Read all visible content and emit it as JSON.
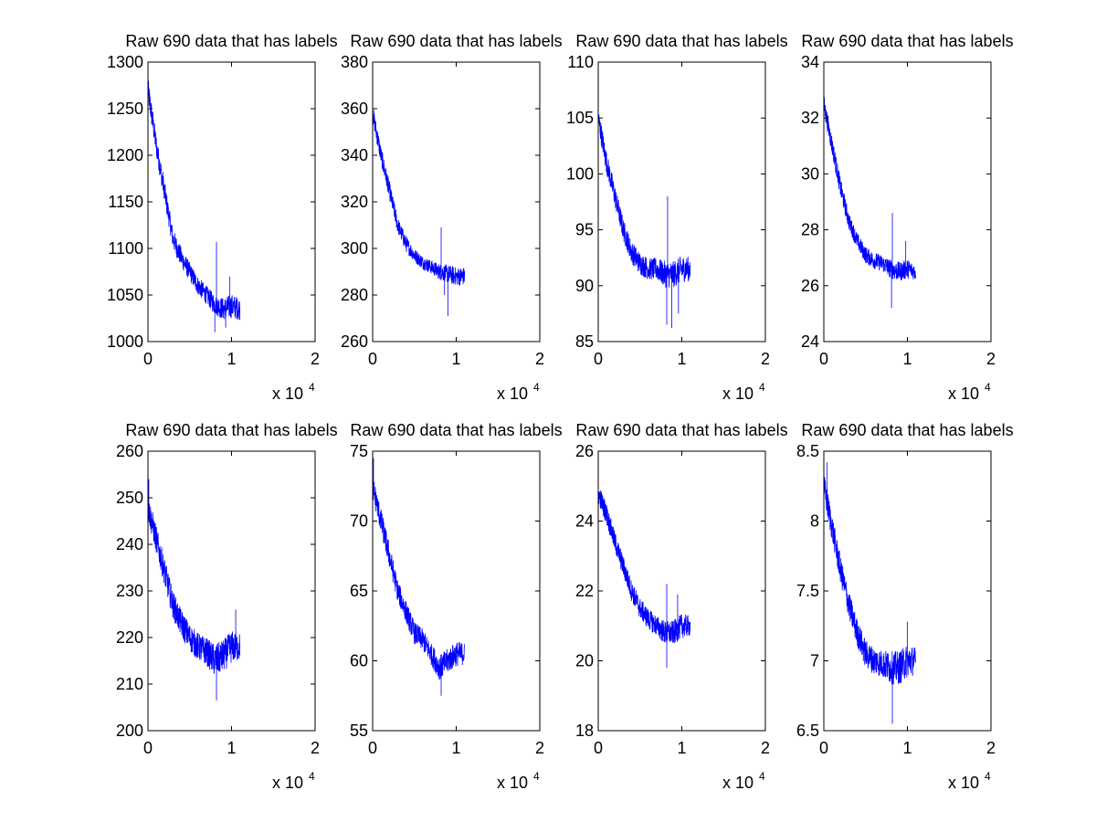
{
  "figure": {
    "background": "#ffffff",
    "axes_color": "#000000",
    "line_color": "#0000ff"
  },
  "chart_data": [
    {
      "type": "line",
      "title": "Raw 690 data that has labels",
      "xlim": [
        0,
        2
      ],
      "x_ticks": [
        "0",
        "1",
        "2"
      ],
      "x_multiplier_label": "x 10",
      "x_multiplier_exponent": "4",
      "ylim": [
        1000,
        1300
      ],
      "y_ticks": [
        "1000",
        "1050",
        "1100",
        "1150",
        "1200",
        "1250",
        "1300"
      ],
      "series": [
        {
          "color": "#0000ff",
          "x": [
            0,
            0.1,
            0.2,
            0.3,
            0.4,
            0.5,
            0.6,
            0.7,
            0.8,
            0.9,
            1.0,
            1.1
          ],
          "y": [
            1270,
            1210,
            1160,
            1110,
            1090,
            1075,
            1060,
            1050,
            1040,
            1035,
            1038,
            1035
          ],
          "band": [
            14,
            12,
            12,
            11,
            11,
            10,
            10,
            10,
            11,
            12,
            13,
            12
          ],
          "spikes": [
            [
              0.82,
              1107
            ],
            [
              0.8,
              1010
            ],
            [
              0.98,
              1070
            ],
            [
              0.93,
              1015
            ]
          ]
        }
      ]
    },
    {
      "type": "line",
      "title": "Raw 690 data that has labels",
      "xlim": [
        0,
        2
      ],
      "x_ticks": [
        "0",
        "1",
        "2"
      ],
      "x_multiplier_label": "x 10",
      "x_multiplier_exponent": "4",
      "ylim": [
        260,
        380
      ],
      "y_ticks": [
        "260",
        "280",
        "300",
        "320",
        "340",
        "360",
        "380"
      ],
      "series": [
        {
          "color": "#0000ff",
          "x": [
            0,
            0.1,
            0.2,
            0.3,
            0.4,
            0.5,
            0.6,
            0.7,
            0.8,
            0.9,
            1.0,
            1.1
          ],
          "y": [
            358,
            340,
            325,
            310,
            302,
            297,
            294,
            292,
            290,
            289,
            288,
            288
          ],
          "band": [
            4,
            4,
            4,
            3.5,
            3.5,
            3,
            3,
            3,
            3.5,
            4,
            4,
            4
          ],
          "spikes": [
            [
              0.82,
              309
            ],
            [
              0.9,
              271
            ],
            [
              0.86,
              280
            ]
          ]
        }
      ]
    },
    {
      "type": "line",
      "title": "Raw 690 data that has labels",
      "xlim": [
        0,
        2
      ],
      "x_ticks": [
        "0",
        "1",
        "2"
      ],
      "x_multiplier_label": "x 10",
      "x_multiplier_exponent": "4",
      "ylim": [
        85,
        110
      ],
      "y_ticks": [
        "85",
        "90",
        "95",
        "100",
        "105",
        "110"
      ],
      "series": [
        {
          "color": "#0000ff",
          "x": [
            0,
            0.1,
            0.2,
            0.3,
            0.4,
            0.5,
            0.6,
            0.7,
            0.8,
            0.9,
            1.0,
            1.1
          ],
          "y": [
            105,
            101,
            98,
            95,
            93,
            92,
            91.5,
            91.5,
            91,
            91,
            91.5,
            91.5
          ],
          "band": [
            1.0,
            1.0,
            1.0,
            1.0,
            1.0,
            1.0,
            1.0,
            1.0,
            1.2,
            1.2,
            1.2,
            1.1
          ],
          "spikes": [
            [
              0.83,
              98
            ],
            [
              0.82,
              86.5
            ],
            [
              0.88,
              86.2
            ],
            [
              0.96,
              87.5
            ]
          ]
        }
      ]
    },
    {
      "type": "line",
      "title": "Raw 690 data that has labels",
      "xlim": [
        0,
        2
      ],
      "x_ticks": [
        "0",
        "1",
        "2"
      ],
      "x_multiplier_label": "x 10",
      "x_multiplier_exponent": "4",
      "ylim": [
        24,
        34
      ],
      "y_ticks": [
        "24",
        "26",
        "28",
        "30",
        "32",
        "34"
      ],
      "series": [
        {
          "color": "#0000ff",
          "x": [
            0,
            0.1,
            0.2,
            0.3,
            0.4,
            0.5,
            0.6,
            0.7,
            0.8,
            0.9,
            1.0,
            1.1
          ],
          "y": [
            32.5,
            31,
            29.5,
            28.3,
            27.6,
            27.1,
            26.9,
            26.8,
            26.6,
            26.5,
            26.6,
            26.5
          ],
          "band": [
            0.35,
            0.35,
            0.35,
            0.3,
            0.3,
            0.3,
            0.3,
            0.3,
            0.35,
            0.35,
            0.35,
            0.3
          ],
          "spikes": [
            [
              0.82,
              28.6
            ],
            [
              0.81,
              25.2
            ],
            [
              0.98,
              27.6
            ]
          ]
        }
      ]
    },
    {
      "type": "line",
      "title": "Raw 690 data that has labels",
      "xlim": [
        0,
        2
      ],
      "x_ticks": [
        "0",
        "1",
        "2"
      ],
      "x_multiplier_label": "x 10",
      "x_multiplier_exponent": "4",
      "ylim": [
        200,
        260
      ],
      "y_ticks": [
        "200",
        "210",
        "220",
        "230",
        "240",
        "250",
        "260"
      ],
      "series": [
        {
          "color": "#0000ff",
          "x": [
            0,
            0.1,
            0.2,
            0.3,
            0.4,
            0.5,
            0.6,
            0.7,
            0.8,
            0.9,
            1.0,
            1.1
          ],
          "y": [
            248,
            241,
            234,
            227,
            223,
            220,
            218,
            217,
            215,
            216,
            218,
            218
          ],
          "band": [
            3,
            3,
            3,
            3,
            3,
            3,
            3,
            3,
            3.5,
            3.5,
            3.5,
            3
          ],
          "spikes": [
            [
              0.82,
              206.5
            ],
            [
              0.01,
              254
            ],
            [
              1.05,
              226
            ]
          ]
        }
      ]
    },
    {
      "type": "line",
      "title": "Raw 690 data that has labels",
      "xlim": [
        0,
        2
      ],
      "x_ticks": [
        "0",
        "1",
        "2"
      ],
      "x_multiplier_label": "x 10",
      "x_multiplier_exponent": "4",
      "ylim": [
        55,
        75
      ],
      "y_ticks": [
        "55",
        "60",
        "65",
        "70",
        "75"
      ],
      "series": [
        {
          "color": "#0000ff",
          "x": [
            0,
            0.1,
            0.2,
            0.3,
            0.4,
            0.5,
            0.6,
            0.7,
            0.8,
            0.9,
            1.0,
            1.1
          ],
          "y": [
            72.5,
            70,
            67.5,
            65,
            63.5,
            62,
            61.5,
            60.5,
            59.5,
            60,
            60.5,
            60.5
          ],
          "band": [
            0.9,
            0.9,
            0.9,
            0.8,
            0.8,
            0.8,
            0.8,
            0.8,
            0.9,
            0.9,
            0.9,
            0.8
          ],
          "spikes": [
            [
              0.01,
              74.5
            ],
            [
              0.82,
              57.5
            ]
          ]
        }
      ]
    },
    {
      "type": "line",
      "title": "Raw 690 data that has labels",
      "xlim": [
        0,
        2
      ],
      "x_ticks": [
        "0",
        "1",
        "2"
      ],
      "x_multiplier_label": "x 10",
      "x_multiplier_exponent": "4",
      "ylim": [
        18,
        26
      ],
      "y_ticks": [
        "18",
        "20",
        "22",
        "24",
        "26"
      ],
      "series": [
        {
          "color": "#0000ff",
          "x": [
            0,
            0.1,
            0.2,
            0.3,
            0.4,
            0.5,
            0.6,
            0.7,
            0.8,
            0.9,
            1.0,
            1.1
          ],
          "y": [
            24.8,
            24.2,
            23.4,
            22.7,
            22,
            21.5,
            21.2,
            21,
            20.8,
            20.8,
            21,
            21
          ],
          "band": [
            0.3,
            0.3,
            0.3,
            0.3,
            0.3,
            0.3,
            0.3,
            0.3,
            0.35,
            0.35,
            0.35,
            0.3
          ],
          "spikes": [
            [
              0.82,
              22.2
            ],
            [
              0.82,
              19.8
            ],
            [
              0.95,
              21.9
            ]
          ]
        }
      ]
    },
    {
      "type": "line",
      "title": "Raw 690 data that has labels",
      "xlim": [
        0,
        2
      ],
      "x_ticks": [
        "0",
        "1",
        "2"
      ],
      "x_multiplier_label": "x 10",
      "x_multiplier_exponent": "4",
      "ylim": [
        6.5,
        8.5
      ],
      "y_ticks": [
        "6.5",
        "7",
        "7.5",
        "8",
        "8.5"
      ],
      "series": [
        {
          "color": "#0000ff",
          "x": [
            0,
            0.1,
            0.2,
            0.3,
            0.4,
            0.5,
            0.6,
            0.7,
            0.8,
            0.9,
            1.0,
            1.1
          ],
          "y": [
            8.25,
            7.95,
            7.65,
            7.4,
            7.2,
            7.05,
            7.0,
            6.98,
            6.95,
            6.95,
            7.0,
            7.0
          ],
          "band": [
            0.1,
            0.1,
            0.1,
            0.1,
            0.1,
            0.1,
            0.1,
            0.1,
            0.12,
            0.12,
            0.12,
            0.1
          ],
          "spikes": [
            [
              0.04,
              8.42
            ],
            [
              0.82,
              6.55
            ],
            [
              1.0,
              7.28
            ]
          ]
        }
      ]
    }
  ]
}
